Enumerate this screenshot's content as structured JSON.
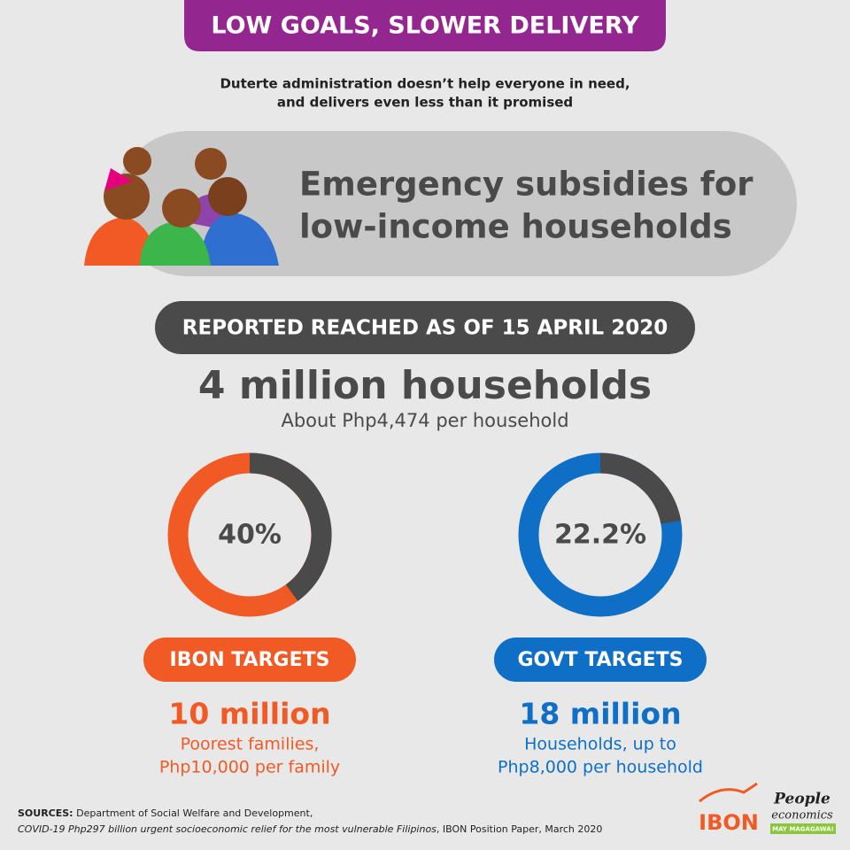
{
  "header": {
    "title": "LOW GOALS, SLOWER DELIVERY",
    "subtitle": [
      "Duterte administration doesn’t help everyone in need,",
      "and delivers even less than it promised"
    ]
  },
  "banner": [
    "Emergency subsidies for",
    "low-income households"
  ],
  "reported": {
    "label": "REPORTED REACHED AS OF 15 APRIL 2020",
    "headline": "4 million households",
    "detail": "About Php4,474 per household"
  },
  "chart_data": [
    {
      "type": "donut",
      "values": [
        40
      ],
      "value_labels": [
        "40%"
      ],
      "color": "#4a4a4a",
      "ring_color": "#f15a24"
    },
    {
      "type": "donut",
      "values": [
        22.2
      ],
      "value_labels": [
        "22.2%"
      ],
      "color": "#4a4a4a",
      "ring_color": "#0f6fc6"
    }
  ],
  "targets": [
    {
      "label": "IBON TARGETS",
      "amount": "10 million",
      "note": [
        "Poorest families,",
        "Php10,000 per family"
      ]
    },
    {
      "label": "GOVT TARGETS",
      "amount": "18 million",
      "note": [
        "Households, up to",
        "Php8,000 per household"
      ]
    }
  ],
  "sources": {
    "label": "SOURCES:",
    "line1": "Department of Social Welfare and Development,",
    "line2": "COVID-19 Php297 billion urgent socioeconomic relief for the most vulnerable Filipinos",
    "line2_rest": ", IBON Position Paper, March 2020"
  },
  "logos": {
    "ibon": "IBON",
    "people": "People",
    "economics": "economics",
    "tagline": "MAY MAGAGAWA!"
  }
}
